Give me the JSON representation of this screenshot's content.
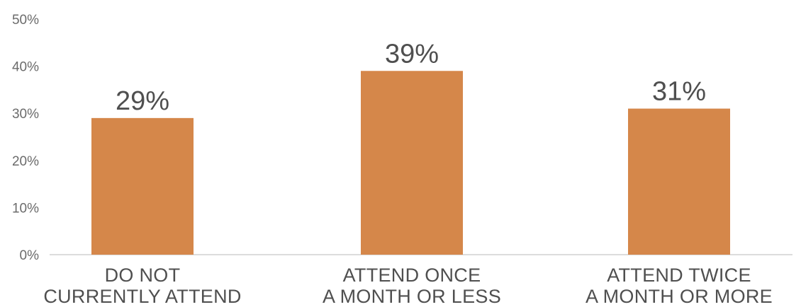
{
  "chart_data": {
    "type": "bar",
    "categories": [
      [
        "DO NOT",
        "CURRENTLY ATTEND"
      ],
      [
        "ATTEND ONCE",
        "A MONTH OR LESS"
      ],
      [
        "ATTEND TWICE",
        "A MONTH OR MORE"
      ]
    ],
    "values": [
      29,
      39,
      31
    ],
    "data_labels": [
      "29%",
      "39%",
      "31%"
    ],
    "y_ticks": [
      0,
      10,
      20,
      30,
      40,
      50
    ],
    "y_tick_labels": [
      "0%",
      "10%",
      "20%",
      "30%",
      "40%",
      "50%"
    ],
    "ylim": [
      0,
      50
    ],
    "grid": false,
    "legend": "none",
    "colors": {
      "bar": "#D5874A",
      "axis": "#d0d0d0",
      "tick_text": "#6b6b6b",
      "label_text": "#4f4f4f"
    }
  }
}
